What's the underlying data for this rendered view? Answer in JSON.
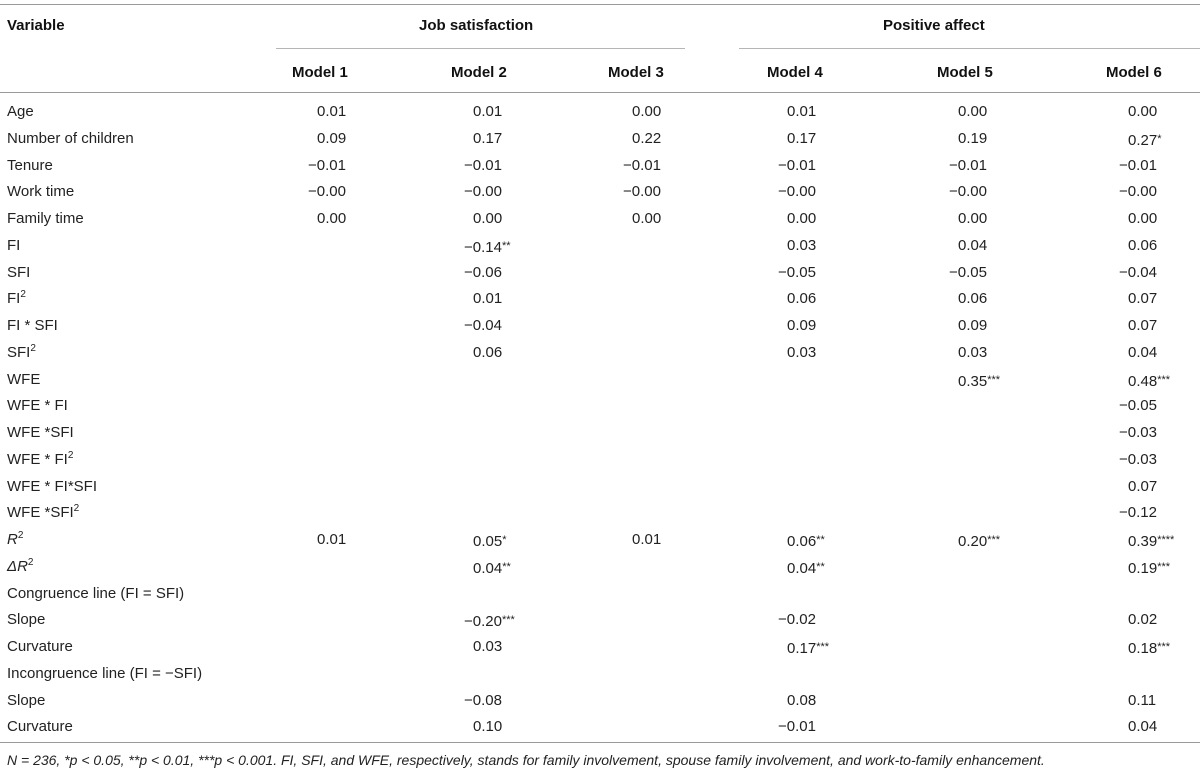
{
  "header": {
    "variable_label": "Variable",
    "group_job": "Job satisfaction",
    "group_positive": "Positive affect",
    "models": [
      "Model 1",
      "Model 2",
      "Model 3",
      "Model 4",
      "Model 5",
      "Model 6"
    ]
  },
  "rows": [
    {
      "label": "Age",
      "values": [
        "0.01",
        "0.01",
        "0.00",
        "0.01",
        "0.00",
        "0.00"
      ]
    },
    {
      "label": "Number of children",
      "values": [
        "0.09",
        "0.17",
        "0.22",
        "0.17",
        "0.19",
        "0.27*"
      ]
    },
    {
      "label": "Tenure",
      "values": [
        "−0.01",
        "−0.01",
        "−0.01",
        "−0.01",
        "−0.01",
        "−0.01"
      ]
    },
    {
      "label": "Work time",
      "values": [
        "−0.00",
        "−0.00",
        "−0.00",
        "−0.00",
        "−0.00",
        "−0.00"
      ]
    },
    {
      "label": "Family time",
      "values": [
        "0.00",
        "0.00",
        "0.00",
        "0.00",
        "0.00",
        "0.00"
      ]
    },
    {
      "label": "FI",
      "values": [
        "",
        "−0.14**",
        "",
        "0.03",
        "0.04",
        "0.06"
      ]
    },
    {
      "label": "SFI",
      "values": [
        "",
        "−0.06",
        "",
        "−0.05",
        "−0.05",
        "−0.04"
      ]
    },
    {
      "label": "FI",
      "sup": "2",
      "values": [
        "",
        "0.01",
        "",
        "0.06",
        "0.06",
        "0.07"
      ]
    },
    {
      "label": "FI * SFI",
      "values": [
        "",
        "−0.04",
        "",
        "0.09",
        "0.09",
        "0.07"
      ]
    },
    {
      "label": "SFI",
      "sup": "2",
      "values": [
        "",
        "0.06",
        "",
        "0.03",
        "0.03",
        "0.04"
      ]
    },
    {
      "label": "WFE",
      "values": [
        "",
        "",
        "",
        "",
        "0.35***",
        "0.48***"
      ]
    },
    {
      "label": "WFE * FI",
      "values": [
        "",
        "",
        "",
        "",
        "",
        "−0.05"
      ]
    },
    {
      "label": "WFE *SFI",
      "values": [
        "",
        "",
        "",
        "",
        "",
        "−0.03"
      ]
    },
    {
      "label": "WFE * FI",
      "sup": "2",
      "values": [
        "",
        "",
        "",
        "",
        "",
        "−0.03"
      ]
    },
    {
      "label": "WFE * FI*SFI",
      "values": [
        "",
        "",
        "",
        "",
        "",
        "0.07"
      ]
    },
    {
      "label": "WFE *SFI",
      "sup": "2",
      "values": [
        "",
        "",
        "",
        "",
        "",
        "−0.12"
      ]
    },
    {
      "label": "R",
      "sup": "2",
      "italic": true,
      "values": [
        "0.01",
        "0.05*",
        "0.01",
        "0.06**",
        "0.20***",
        "0.39****"
      ]
    },
    {
      "label": "ΔR",
      "sup": "2",
      "italic": true,
      "values": [
        "",
        "0.04**",
        "",
        "0.04**",
        "",
        "0.19***"
      ]
    },
    {
      "label": "Congruence line (FI = SFI)",
      "values": [
        "",
        "",
        "",
        "",
        "",
        ""
      ]
    },
    {
      "label": "Slope",
      "values": [
        "",
        "−0.20***",
        "",
        "−0.02",
        "",
        "0.02"
      ]
    },
    {
      "label": "Curvature",
      "values": [
        "",
        "0.03",
        "",
        "0.17***",
        "",
        "0.18***"
      ]
    },
    {
      "label": "Incongruence line (FI = −SFI)",
      "values": [
        "",
        "",
        "",
        "",
        "",
        ""
      ]
    },
    {
      "label": "Slope",
      "values": [
        "",
        "−0.08",
        "",
        "0.08",
        "",
        "0.11"
      ]
    },
    {
      "label": "Curvature",
      "values": [
        "",
        "0.10",
        "",
        "−0.01",
        "",
        "0.04"
      ]
    }
  ],
  "footnote": "N = 236, *p < 0.05, **p < 0.01, ***p < 0.001. FI, SFI, and WFE, respectively, stands for family involvement, spouse family involvement, and work-to-family enhancement."
}
